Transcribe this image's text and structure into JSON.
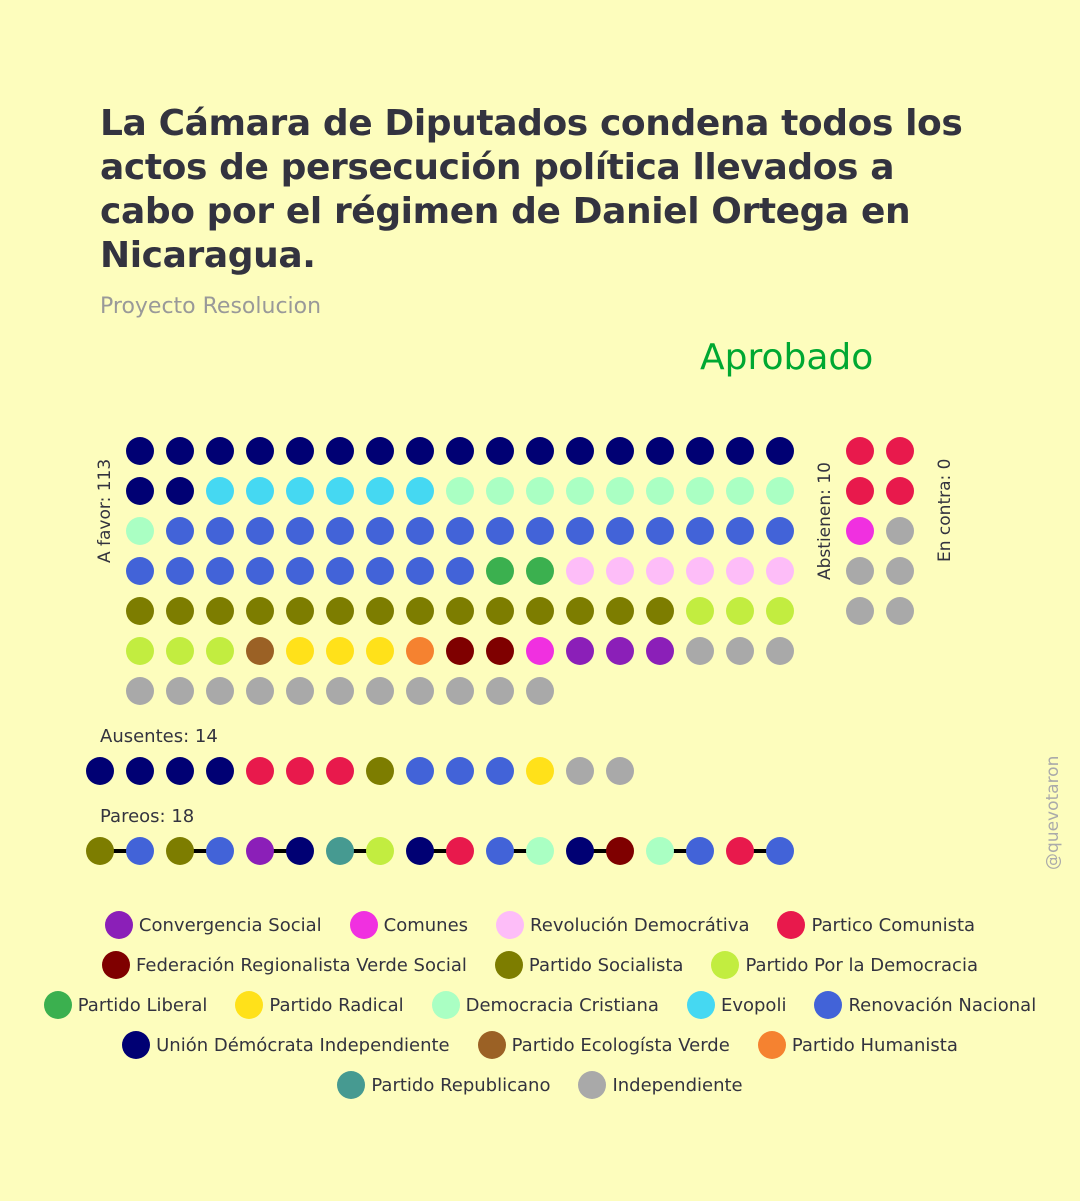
{
  "title": "La Cámara de Diputados condena todos los actos de persecución política llevados a cabo por el régimen de Daniel Ortega en Nicaragua.",
  "subtitle": "Proyecto Resolucion",
  "status": "Aprobado",
  "status_color": "#00a832",
  "credit": "@quevotaron",
  "labels": {
    "favor": "A favor: 113",
    "abstain": "Abstienen: 10",
    "against": "En contra: 0",
    "absent": "Ausentes: 14",
    "pairs": "Pareos: 18"
  },
  "parties": [
    {
      "code": "CS",
      "name": "Convergencia Social",
      "color": "#8b1fb8"
    },
    {
      "code": "COM",
      "name": "Comunes",
      "color": "#f030e0"
    },
    {
      "code": "RD",
      "name": "Revolución Democrátiva",
      "color": "#fdbdf8"
    },
    {
      "code": "PC",
      "name": "Partico Comunista",
      "color": "#e8194c"
    },
    {
      "code": "FRVS",
      "name": "Federación Regionalista Verde Social",
      "color": "#7f0000"
    },
    {
      "code": "PS",
      "name": "Partido Socialista",
      "color": "#7d7d00"
    },
    {
      "code": "PPD",
      "name": "Partido Por la Democracia",
      "color": "#c2ed40"
    },
    {
      "code": "PL",
      "name": "Partido Liberal",
      "color": "#3bb04f"
    },
    {
      "code": "PR",
      "name": "Partido Radical",
      "color": "#ffe11a"
    },
    {
      "code": "DC",
      "name": "Democracia Cristiana",
      "color": "#aaffc3"
    },
    {
      "code": "EVO",
      "name": "Evopoli",
      "color": "#45d8f2"
    },
    {
      "code": "RN",
      "name": "Renovación Nacional",
      "color": "#4263d8"
    },
    {
      "code": "UDI",
      "name": "Unión Démócrata Independiente",
      "color": "#000073"
    },
    {
      "code": "PEV",
      "name": "Partido Ecologísta Verde",
      "color": "#9b6125"
    },
    {
      "code": "PH",
      "name": "Partido Humanista",
      "color": "#f58230"
    },
    {
      "code": "REP",
      "name": "Partido Republicano",
      "color": "#469a91"
    },
    {
      "code": "IND",
      "name": "Independiente",
      "color": "#a9a9a9"
    }
  ],
  "chart_data": {
    "type": "dot-matrix",
    "categories": [
      "A favor",
      "Abstienen",
      "En contra",
      "Ausentes",
      "Pareos"
    ],
    "values": [
      113,
      10,
      0,
      14,
      18
    ],
    "favor": [
      {
        "party": "UDI",
        "count": 19
      },
      {
        "party": "EVO",
        "count": 6
      },
      {
        "party": "DC",
        "count": 10
      },
      {
        "party": "RN",
        "count": 25
      },
      {
        "party": "PL",
        "count": 2
      },
      {
        "party": "RD",
        "count": 6
      },
      {
        "party": "PS",
        "count": 14
      },
      {
        "party": "PPD",
        "count": 6
      },
      {
        "party": "PEV",
        "count": 1
      },
      {
        "party": "PR",
        "count": 3
      },
      {
        "party": "PH",
        "count": 1
      },
      {
        "party": "FRVS",
        "count": 2
      },
      {
        "party": "COM",
        "count": 1
      },
      {
        "party": "CS",
        "count": 3
      },
      {
        "party": "IND",
        "count": 14
      }
    ],
    "abstain": [
      {
        "party": "PC",
        "count": 4
      },
      {
        "party": "COM",
        "count": 1
      },
      {
        "party": "IND",
        "count": 5
      }
    ],
    "against": [],
    "absent": [
      "UDI",
      "UDI",
      "UDI",
      "UDI",
      "PC",
      "PC",
      "PC",
      "PS",
      "RN",
      "RN",
      "RN",
      "PR",
      "IND",
      "IND"
    ],
    "pairs": [
      [
        "PS",
        "RN"
      ],
      [
        "PS",
        "RN"
      ],
      [
        "CS",
        "UDI"
      ],
      [
        "REP",
        "PPD"
      ],
      [
        "UDI",
        "PC"
      ],
      [
        "RN",
        "DC"
      ],
      [
        "UDI",
        "FRVS"
      ],
      [
        "DC",
        "RN"
      ],
      [
        "PC",
        "RN"
      ]
    ]
  }
}
